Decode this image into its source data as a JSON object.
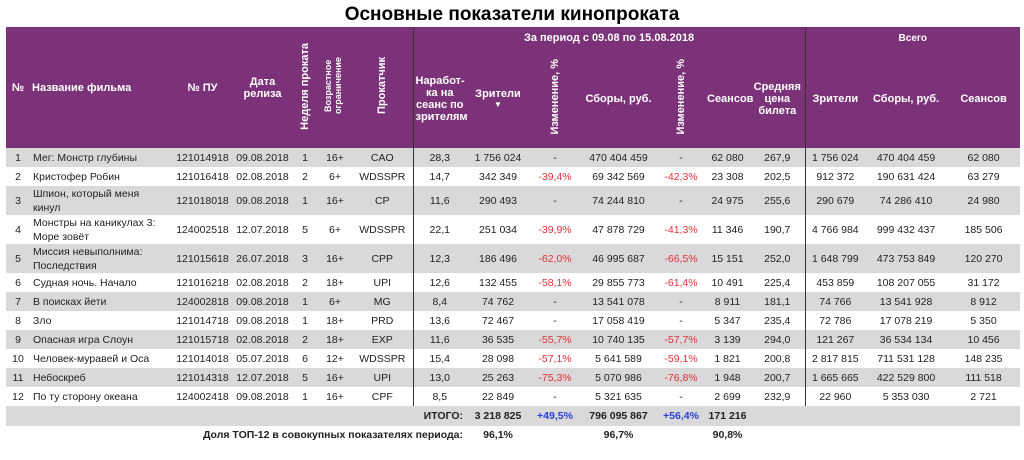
{
  "title": "Основные показатели кинопроката",
  "header": {
    "num": "№",
    "name": "Название фильма",
    "pu": "№ ПУ",
    "release": "Дата релиза",
    "week": "Неделя проката",
    "age": "Возрастное ограничение",
    "distributor": "Прокатчик",
    "period": "За период с 09.08 по 15.08.2018",
    "total_group": "Всего",
    "per_seance": "Наработ-ка на сеанс по зрителям",
    "viewers": "Зрители",
    "sort_icon": "▼",
    "change1": "Изменение, %",
    "gross": "Сборы, руб.",
    "change2": "Изменение, %",
    "seances": "Сеансов",
    "avg_price": "Средняя цена билета",
    "total_viewers": "Зрители",
    "total_gross": "Сборы, руб.",
    "total_seances": "Сеансов"
  },
  "rows": [
    {
      "n": "1",
      "name": "Мег: Монстр глубины",
      "pu": "121014918",
      "date": "09.08.2018",
      "week": "1",
      "age": "16+",
      "dist": "CAO",
      "ps": "28,3",
      "v": "1 756 024",
      "c1": "-",
      "g": "470 404 459",
      "c2": "-",
      "s": "62 080",
      "p": "267,9",
      "tv": "1 756 024",
      "tg": "470 404 459",
      "ts": "62 080"
    },
    {
      "n": "2",
      "name": "Кристофер Робин",
      "pu": "121016418",
      "date": "02.08.2018",
      "week": "2",
      "age": "6+",
      "dist": "WDSSPR",
      "ps": "14,7",
      "v": "342 349",
      "c1": "-39,4%",
      "g": "69 342 569",
      "c2": "-42,3%",
      "s": "23 308",
      "p": "202,5",
      "tv": "912 372",
      "tg": "190 631 424",
      "ts": "63 279"
    },
    {
      "n": "3",
      "name": "Шпион, который меня кинул",
      "pu": "121018018",
      "date": "09.08.2018",
      "week": "1",
      "age": "16+",
      "dist": "CP",
      "ps": "11,6",
      "v": "290 493",
      "c1": "-",
      "g": "74 244 810",
      "c2": "-",
      "s": "24 975",
      "p": "255,6",
      "tv": "290 679",
      "tg": "74 286 410",
      "ts": "24 980"
    },
    {
      "n": "4",
      "name": "Монстры на каникулах 3: Море зовёт",
      "pu": "124002518",
      "date": "12.07.2018",
      "week": "5",
      "age": "6+",
      "dist": "WDSSPR",
      "ps": "22,1",
      "v": "251 034",
      "c1": "-39,9%",
      "g": "47 878 729",
      "c2": "-41,3%",
      "s": "11 346",
      "p": "190,7",
      "tv": "4 766 984",
      "tg": "999 432 437",
      "ts": "185 506"
    },
    {
      "n": "5",
      "name": "Миссия невыполнима: Последствия",
      "pu": "121015618",
      "date": "26.07.2018",
      "week": "3",
      "age": "16+",
      "dist": "CPP",
      "ps": "12,3",
      "v": "186 496",
      "c1": "-62,0%",
      "g": "46 995 687",
      "c2": "-66,5%",
      "s": "15 151",
      "p": "252,0",
      "tv": "1 648 799",
      "tg": "473 753 849",
      "ts": "120 270"
    },
    {
      "n": "6",
      "name": "Судная ночь. Начало",
      "pu": "121016218",
      "date": "02.08.2018",
      "week": "2",
      "age": "18+",
      "dist": "UPI",
      "ps": "12,6",
      "v": "132 455",
      "c1": "-58,1%",
      "g": "29 855 773",
      "c2": "-61,4%",
      "s": "10 491",
      "p": "225,4",
      "tv": "453 859",
      "tg": "108 207 055",
      "ts": "31 172"
    },
    {
      "n": "7",
      "name": "В поисках йети",
      "pu": "124002818",
      "date": "09.08.2018",
      "week": "1",
      "age": "6+",
      "dist": "MG",
      "ps": "8,4",
      "v": "74 762",
      "c1": "-",
      "g": "13 541 078",
      "c2": "-",
      "s": "8 911",
      "p": "181,1",
      "tv": "74 766",
      "tg": "13 541 928",
      "ts": "8 912"
    },
    {
      "n": "8",
      "name": "Зло",
      "pu": "121014718",
      "date": "09.08.2018",
      "week": "1",
      "age": "18+",
      "dist": "PRD",
      "ps": "13,6",
      "v": "72 467",
      "c1": "-",
      "g": "17 058 419",
      "c2": "-",
      "s": "5 347",
      "p": "235,4",
      "tv": "72 786",
      "tg": "17 078 219",
      "ts": "5 350"
    },
    {
      "n": "9",
      "name": "Опасная игра Слоун",
      "pu": "121015718",
      "date": "02.08.2018",
      "week": "2",
      "age": "18+",
      "dist": "EXP",
      "ps": "11,6",
      "v": "36 535",
      "c1": "-55,7%",
      "g": "10 740 135",
      "c2": "-57,7%",
      "s": "3 139",
      "p": "294,0",
      "tv": "121 267",
      "tg": "36 534 134",
      "ts": "10 456"
    },
    {
      "n": "10",
      "name": "Человек-муравей и Оса",
      "pu": "121014018",
      "date": "05.07.2018",
      "week": "6",
      "age": "12+",
      "dist": "WDSSPR",
      "ps": "15,4",
      "v": "28 098",
      "c1": "-57,1%",
      "g": "5 641 589",
      "c2": "-59,1%",
      "s": "1 821",
      "p": "200,8",
      "tv": "2 817 815",
      "tg": "711 531 128",
      "ts": "148 235"
    },
    {
      "n": "11",
      "name": "Небоскреб",
      "pu": "121014318",
      "date": "12.07.2018",
      "week": "5",
      "age": "16+",
      "dist": "UPI",
      "ps": "13,0",
      "v": "25 263",
      "c1": "-75,3%",
      "g": "5 070 986",
      "c2": "-76,8%",
      "s": "1 948",
      "p": "200,7",
      "tv": "1 665 665",
      "tg": "422 529 800",
      "ts": "111 518"
    },
    {
      "n": "12",
      "name": "По ту сторону океана",
      "pu": "124002418",
      "date": "09.08.2018",
      "week": "1",
      "age": "16+",
      "dist": "CPF",
      "ps": "8,5",
      "v": "22 849",
      "c1": "-",
      "g": "5 321 635",
      "c2": "-",
      "s": "2 699",
      "p": "232,9",
      "tv": "22 960",
      "tg": "5 353 030",
      "ts": "2 721"
    }
  ],
  "totals": {
    "label": "ИТОГО:",
    "viewers": "3 218 825",
    "c1": "+49,5%",
    "gross": "796 095 867",
    "c2": "+56,4%",
    "seances": "171 216"
  },
  "share": {
    "label": "Доля ТОП-12 в совокупных показателях периода:",
    "viewers": "96,1%",
    "gross": "96,7%",
    "seances": "90,8%"
  },
  "colors": {
    "header": "#7b3278",
    "negative": "#e0303a",
    "positive": "#2b3fd8",
    "stripe": "#d9d9d9"
  }
}
